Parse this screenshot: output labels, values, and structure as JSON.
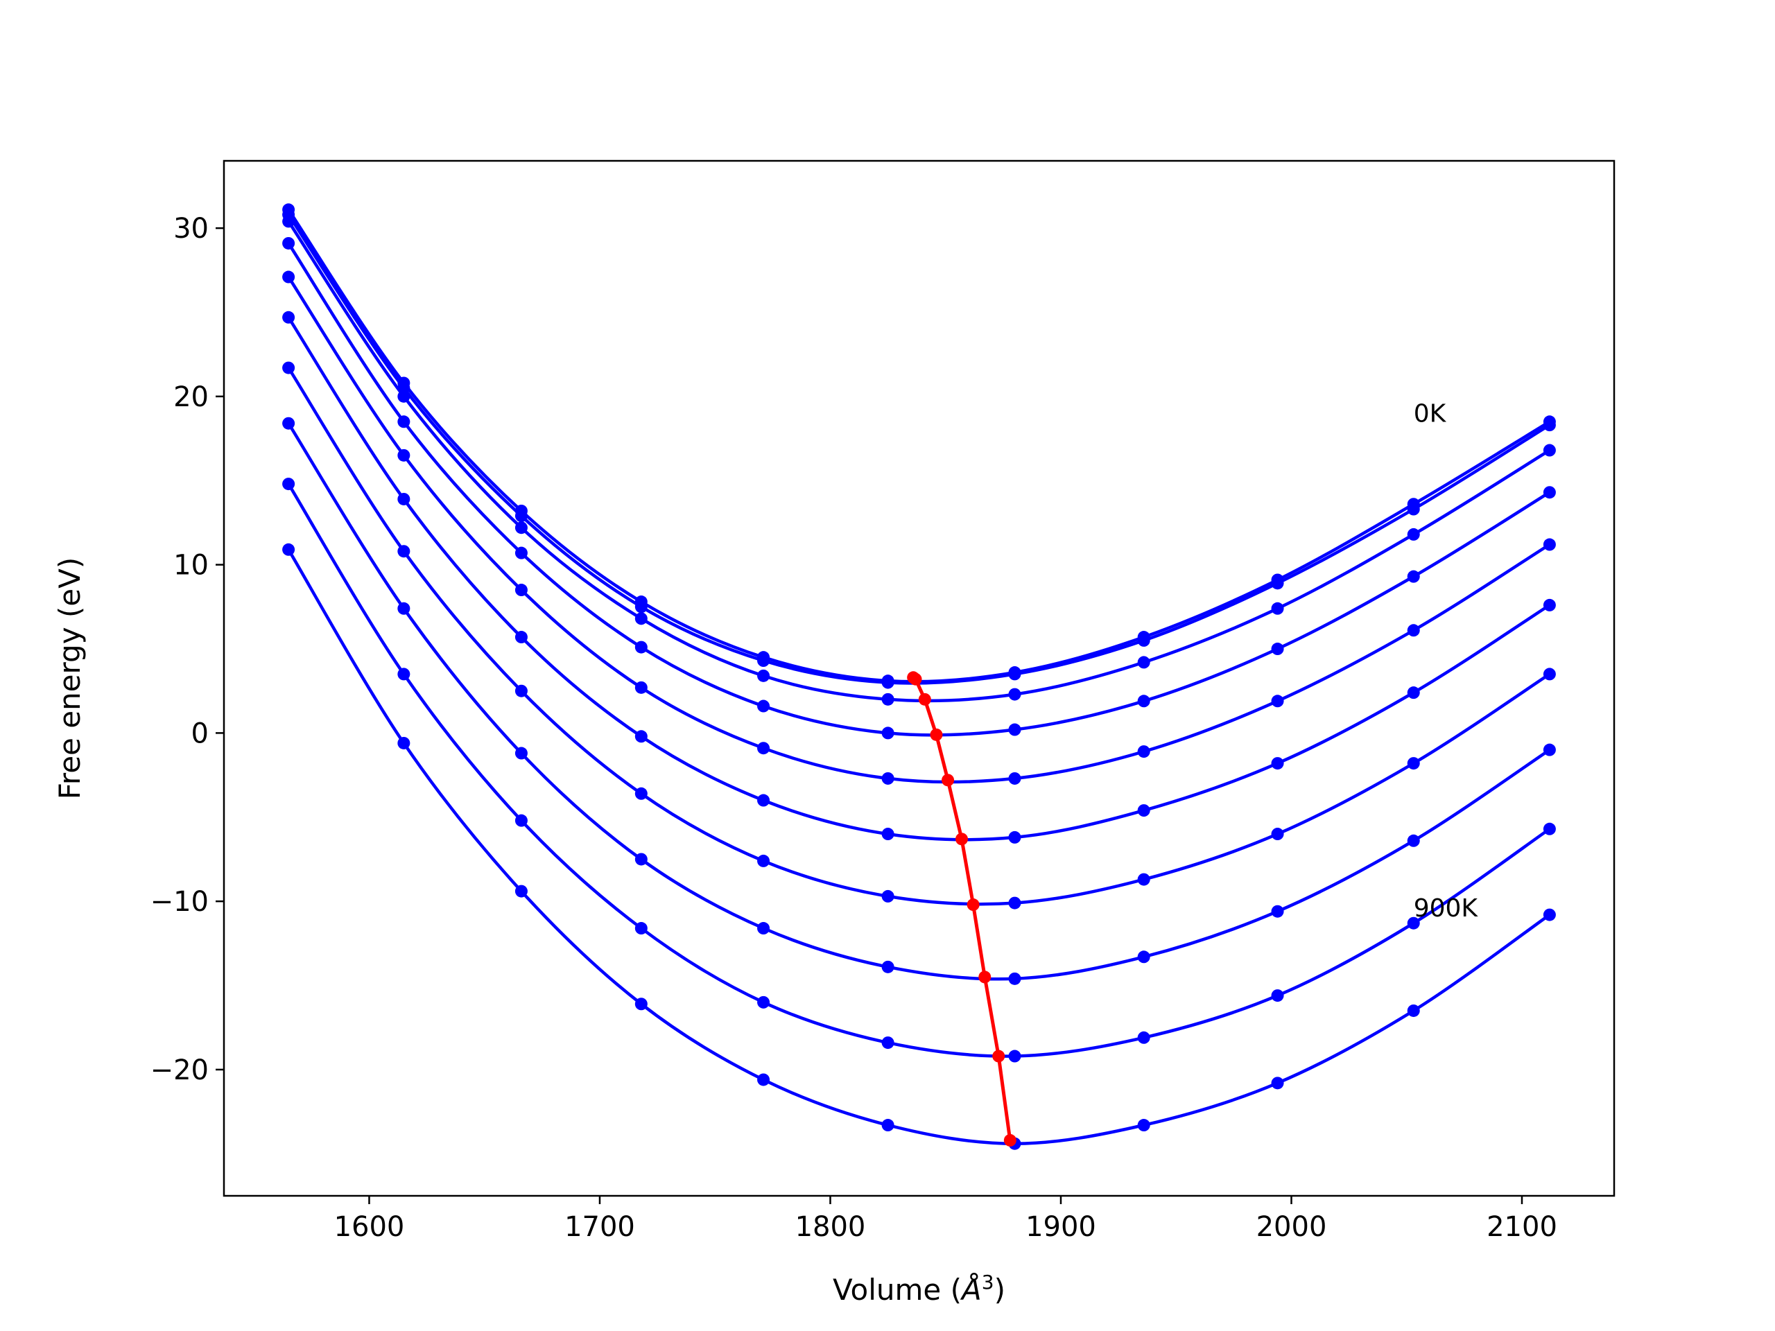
{
  "chart_data": {
    "type": "line",
    "title": "",
    "xlabel": "Volume (",
    "xlabel_symbol": "Å",
    "xlabel_exp": "3",
    "xlabel_close": ")",
    "ylabel": "Free energy (eV)",
    "xlim": [
      1537,
      2140
    ],
    "ylim": [
      -27.5,
      34
    ],
    "xticks": [
      1600,
      1700,
      1800,
      1900,
      2000,
      2100
    ],
    "yticks": [
      -20,
      -10,
      0,
      10,
      20,
      30
    ],
    "ytick_labels": [
      "−20",
      "−10",
      "0",
      "10",
      "20",
      "30"
    ],
    "grid": false,
    "colors": {
      "curves": "#0000ff",
      "minima": "#ff0000"
    },
    "x": [
      1565,
      1615,
      1666,
      1718,
      1771,
      1825,
      1880,
      1936,
      1994,
      2053,
      2112
    ],
    "series": [
      {
        "values": [
          31.1,
          20.8,
          13.2,
          7.8,
          4.5,
          3.1,
          3.6,
          5.7,
          9.1,
          13.6,
          18.5
        ]
      },
      {
        "values": [
          30.8,
          20.5,
          12.9,
          7.5,
          4.3,
          3.0,
          3.5,
          5.5,
          8.9,
          13.3,
          18.3
        ]
      },
      {
        "values": [
          30.4,
          20.0,
          12.2,
          6.8,
          3.4,
          2.0,
          2.3,
          4.2,
          7.4,
          11.8,
          16.8
        ]
      },
      {
        "values": [
          29.1,
          18.5,
          10.7,
          5.1,
          1.6,
          0.0,
          0.2,
          1.9,
          5.0,
          9.3,
          14.3
        ]
      },
      {
        "values": [
          27.1,
          16.5,
          8.5,
          2.7,
          -0.9,
          -2.7,
          -2.7,
          -1.1,
          1.9,
          6.1,
          11.2
        ]
      },
      {
        "values": [
          24.7,
          13.9,
          5.7,
          -0.2,
          -4.0,
          -6.0,
          -6.2,
          -4.6,
          -1.8,
          2.4,
          7.6
        ]
      },
      {
        "values": [
          21.7,
          10.8,
          2.5,
          -3.6,
          -7.6,
          -9.7,
          -10.1,
          -8.7,
          -6.0,
          -1.8,
          3.5
        ]
      },
      {
        "values": [
          18.4,
          7.4,
          -1.2,
          -7.5,
          -11.6,
          -13.9,
          -14.6,
          -13.3,
          -10.6,
          -6.4,
          -1.0
        ]
      },
      {
        "values": [
          14.8,
          3.5,
          -5.2,
          -11.6,
          -16.0,
          -18.4,
          -19.2,
          -18.1,
          -15.6,
          -11.3,
          -5.7
        ]
      },
      {
        "values": [
          10.9,
          -0.6,
          -9.4,
          -16.1,
          -20.6,
          -23.3,
          -24.4,
          -23.3,
          -20.8,
          -16.5,
          -10.8
        ]
      }
    ],
    "minima": {
      "x": [
        1836,
        1837,
        1841,
        1846,
        1851,
        1857,
        1862,
        1867,
        1873,
        1878
      ],
      "y": [
        3.3,
        3.2,
        2.0,
        -0.1,
        -2.8,
        -6.3,
        -10.2,
        -14.5,
        -19.2,
        -24.2
      ]
    },
    "annotations": [
      {
        "text": "0K",
        "x": 2053,
        "y": 18.5
      },
      {
        "text": "900K",
        "x": 2053,
        "y": -10.9
      }
    ]
  }
}
